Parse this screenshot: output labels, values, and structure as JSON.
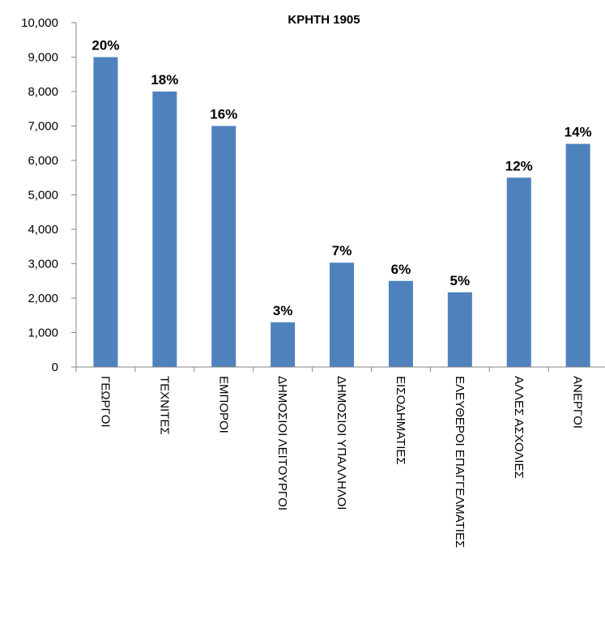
{
  "chart_data": {
    "type": "bar",
    "title": "ΚΡΗΤΗ 1905",
    "xlabel": "",
    "ylabel": "",
    "ylim": [
      0,
      10000
    ],
    "yticks": [
      0,
      1000,
      2000,
      3000,
      4000,
      5000,
      6000,
      7000,
      8000,
      9000,
      10000
    ],
    "ytick_labels": [
      "0",
      "1,000",
      "2,000",
      "3,000",
      "4,000",
      "5,000",
      "6,000",
      "7,000",
      "8,000",
      "9,000",
      "10,000"
    ],
    "grid": false,
    "legend": "none",
    "bar_color": "#4f81bd",
    "categories": [
      "ΓΕΩΡΓΟΙ",
      "ΤΕΧΝΙΤΕΣ",
      "ΕΜΠΟΡΟΙ",
      "ΔΗΜΟΣΙΟΙ ΛΕΙΤΟΥΡΓΟΙ",
      "ΔΗΜΟΣΙΟΙ ΥΠΑΛΛΗΛΟΙ",
      "ΕΙΣΟΔΗΜΑΤΙΕΣ",
      "ΕΛΕΥΘΕΡΟΙ ΕΠΑΓΓΕΛΜΑΤΙΕΣ",
      "ΑΛΛΕΣ ΑΣΧΟΛΙΕΣ",
      "ΑΝΕΡΓΟΙ"
    ],
    "values": [
      9000,
      8000,
      7000,
      1300,
      3030,
      2500,
      2170,
      5500,
      6480
    ],
    "data_labels": [
      "20%",
      "18%",
      "16%",
      "3%",
      "7%",
      "6%",
      "5%",
      "12%",
      "14%"
    ]
  }
}
